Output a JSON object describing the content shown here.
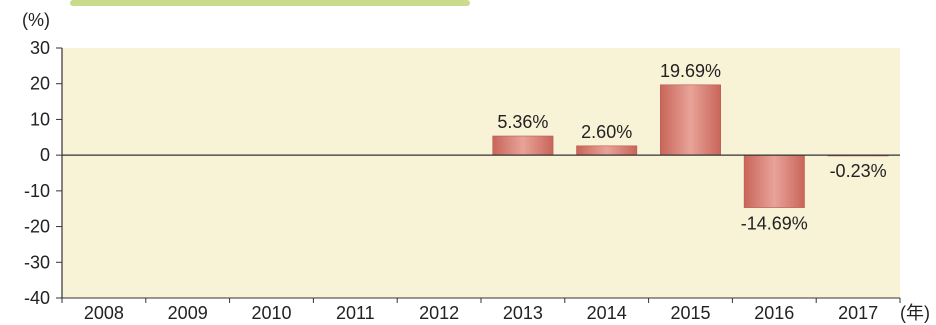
{
  "chart_data": {
    "type": "bar",
    "categories": [
      "2008",
      "2009",
      "2010",
      "2011",
      "2012",
      "2013",
      "2014",
      "2015",
      "2016",
      "2017"
    ],
    "values": [
      null,
      null,
      null,
      null,
      null,
      5.36,
      2.6,
      19.69,
      -14.69,
      -0.23
    ],
    "data_labels": [
      "",
      "",
      "",
      "",
      "",
      "5.36%",
      "2.60%",
      "19.69%",
      "-14.69%",
      "-0.23%"
    ],
    "yunit": "(%)",
    "xunit": "(年)",
    "ylim": [
      -40,
      30
    ],
    "yticks": [
      30,
      20,
      10,
      0,
      -10,
      -20,
      -30,
      -40
    ],
    "grid": false,
    "colors": {
      "plot_bg": "#f8f3d6",
      "bar": "#d4776b",
      "bar_edge": "#b85a4f",
      "axis": "#333333",
      "header_accent": "#c8dc8c"
    }
  }
}
